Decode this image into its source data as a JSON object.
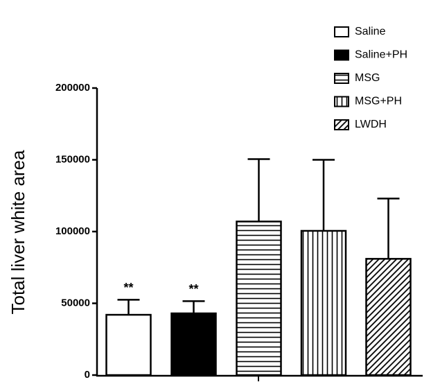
{
  "chart_data": {
    "type": "bar",
    "y_label": "Total  liver white area",
    "ylim": [
      0,
      200000
    ],
    "yticks": [
      0,
      50000,
      100000,
      150000,
      200000
    ],
    "series": [
      {
        "name": "Saline",
        "color": "#ffffff",
        "pattern": "solid",
        "values": [
          42000
        ],
        "errors": [
          10500
        ],
        "annotation": "**"
      },
      {
        "name": "Saline+PH",
        "color": "#000000",
        "pattern": "solid",
        "values": [
          43000
        ],
        "errors": [
          8500
        ],
        "annotation": "**"
      },
      {
        "name": "MSG",
        "color": "#ffffff",
        "pattern": "horizontal",
        "values": [
          107000
        ],
        "errors": [
          43500
        ]
      },
      {
        "name": "MSG+PH",
        "color": "#ffffff",
        "pattern": "vertical",
        "values": [
          100500
        ],
        "errors": [
          49500
        ]
      },
      {
        "name": "LWDH",
        "color": "#ffffff",
        "pattern": "diagonal",
        "values": [
          81000
        ],
        "errors": [
          42000
        ]
      }
    ]
  }
}
